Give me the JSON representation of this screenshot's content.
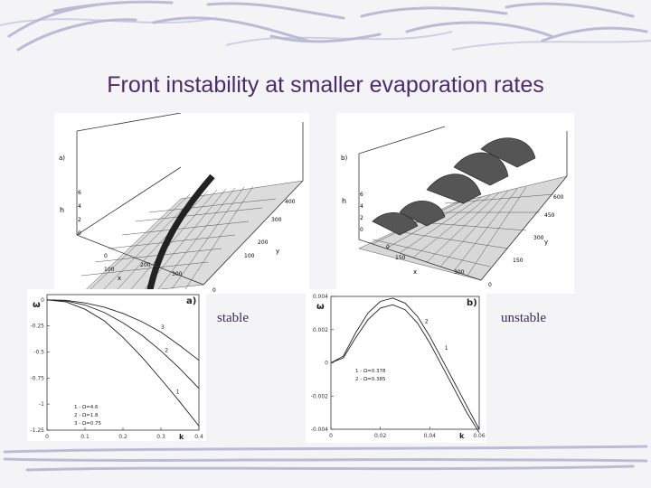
{
  "slide": {
    "title": "Front instability at smaller evaporation rates",
    "label_stable": "stable",
    "label_unstable": "unstable"
  },
  "surface_a": {
    "panel_label": "a)",
    "axis_h": "h",
    "axis_x": "x",
    "axis_y": "y",
    "h_ticks": [
      "6",
      "4",
      "2",
      "0"
    ],
    "x_ticks": [
      "0",
      "100",
      "200",
      "300"
    ],
    "y_ticks": [
      "0",
      "100",
      "200",
      "300",
      "400"
    ]
  },
  "surface_b": {
    "panel_label": "b)",
    "axis_h": "h",
    "axis_x": "x",
    "axis_y": "y",
    "h_ticks": [
      "6",
      "4",
      "2",
      "0"
    ],
    "x_ticks": [
      "0",
      "150",
      "300"
    ],
    "y_ticks": [
      "0",
      "150",
      "300",
      "450",
      "600"
    ]
  },
  "chart_data": [
    {
      "type": "line",
      "panel_label": "a)",
      "xlabel": "k",
      "ylabel": "ω",
      "x_ticks": [
        "0",
        "0.1",
        "0.2",
        "0.3",
        "0.4"
      ],
      "y_ticks": [
        "0",
        "-0.25",
        "-0.5",
        "-0.75",
        "-1",
        "-1.25"
      ],
      "xlim": [
        0,
        0.4
      ],
      "ylim": [
        -1.25,
        0.05
      ],
      "series": [
        {
          "name": "1 - Ω=4.6",
          "label": "1",
          "x": [
            0,
            0.05,
            0.1,
            0.15,
            0.2,
            0.25,
            0.3,
            0.35,
            0.4
          ],
          "y": [
            0,
            -0.02,
            -0.09,
            -0.2,
            -0.36,
            -0.55,
            -0.76,
            -0.98,
            -1.21
          ]
        },
        {
          "name": "2 - Ω=1.8",
          "label": "2",
          "x": [
            0,
            0.05,
            0.1,
            0.15,
            0.2,
            0.25,
            0.3,
            0.35,
            0.4
          ],
          "y": [
            0,
            -0.01,
            -0.05,
            -0.12,
            -0.22,
            -0.34,
            -0.49,
            -0.66,
            -0.85
          ]
        },
        {
          "name": "3 - Ω=0.75",
          "label": "3",
          "x": [
            0,
            0.05,
            0.1,
            0.15,
            0.2,
            0.25,
            0.3,
            0.35,
            0.4
          ],
          "y": [
            0,
            -0.005,
            -0.03,
            -0.07,
            -0.13,
            -0.21,
            -0.31,
            -0.44,
            -0.58
          ]
        }
      ]
    },
    {
      "type": "line",
      "panel_label": "b)",
      "xlabel": "k",
      "ylabel": "ω",
      "x_ticks": [
        "0",
        "0.02",
        "0.04",
        "0.06"
      ],
      "y_ticks": [
        "0.004",
        "0.002",
        "0",
        "-0.002",
        "-0.004"
      ],
      "xlim": [
        0,
        0.06
      ],
      "ylim": [
        -0.004,
        0.004
      ],
      "series": [
        {
          "name": "1 - Ω=0.378",
          "label": "1",
          "x": [
            0,
            0.005,
            0.01,
            0.015,
            0.02,
            0.025,
            0.03,
            0.035,
            0.04,
            0.045,
            0.05,
            0.055,
            0.06
          ],
          "y": [
            0,
            0.0004,
            0.0018,
            0.003,
            0.0037,
            0.0039,
            0.0036,
            0.0028,
            0.0016,
            0.0002,
            -0.0012,
            -0.0026,
            -0.004
          ]
        },
        {
          "name": "2 - Ω=0.385",
          "label": "2",
          "x": [
            0,
            0.005,
            0.01,
            0.015,
            0.02,
            0.025,
            0.03,
            0.035,
            0.04,
            0.045,
            0.05,
            0.055,
            0.06
          ],
          "y": [
            0,
            0.0003,
            0.0015,
            0.0026,
            0.0033,
            0.0035,
            0.0032,
            0.0024,
            0.0012,
            -0.0002,
            -0.0016,
            -0.003,
            -0.0042
          ]
        }
      ]
    }
  ]
}
